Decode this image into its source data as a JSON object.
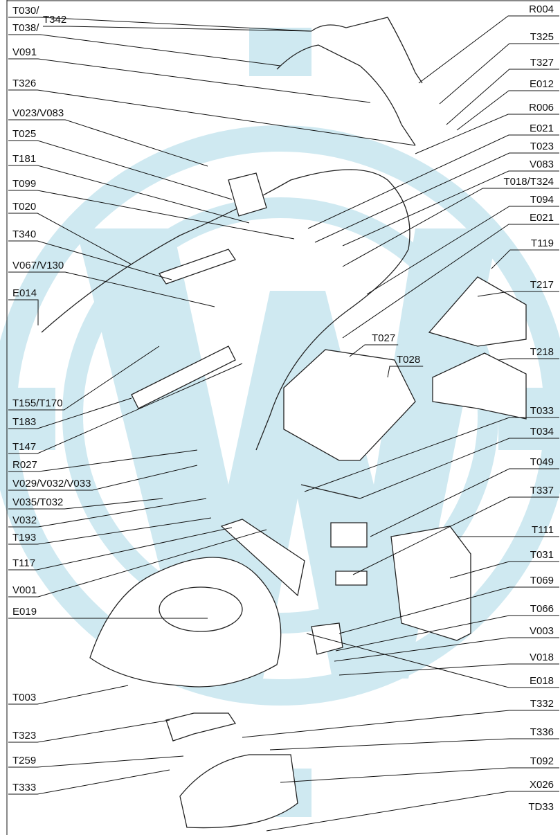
{
  "labels_left": [
    "T030/",
    "T038/",
    "T342",
    "V091",
    "T326",
    "V023/V083",
    "T025",
    "T181",
    "T099",
    "T020",
    "T340",
    "V067/V130",
    "E014",
    "T155/T170",
    "T183",
    "T147",
    "R027",
    "V029/V032/V033",
    "V035/T032",
    "V032",
    "T193",
    "T117",
    "V001",
    "E019",
    "T003",
    "T323",
    "T259",
    "T333"
  ],
  "labels_right": [
    "R004",
    "T325",
    "T327",
    "E012",
    "R006",
    "E021",
    "T023",
    "V083",
    "T018/T324",
    "T094",
    "E021",
    "T119",
    "T217",
    "T218",
    "T033",
    "T034",
    "T049",
    "T337",
    "T111",
    "T031",
    "T069",
    "T066",
    "V003",
    "V018",
    "E018",
    "T332",
    "T336",
    "T092",
    "X026",
    "TD33"
  ],
  "labels_center": [
    "T027",
    "T028"
  ]
}
